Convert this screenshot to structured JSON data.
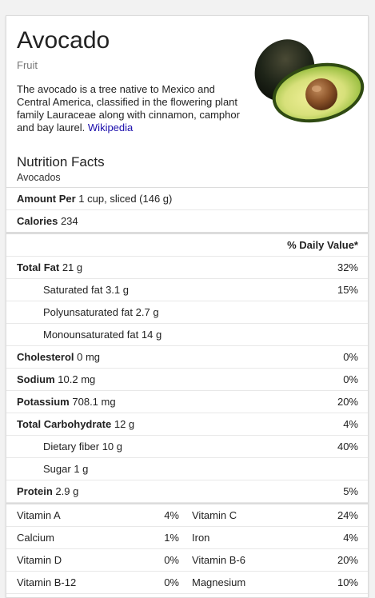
{
  "header": {
    "title": "Avocado",
    "category": "Fruit",
    "description": "The avocado is a tree native to Mexico and Central America, classified in the flowering plant family Lauraceae along with cinnamon, camphor and bay laurel.",
    "source_link": "Wikipedia"
  },
  "nutrition": {
    "title": "Nutrition Facts",
    "subtitle": "Avocados",
    "amount_label": "Amount Per",
    "amount_value": "1 cup, sliced (146 g)",
    "calories_label": "Calories",
    "calories_value": "234",
    "dv_header": "% Daily Value*",
    "rows": [
      {
        "label": "Total Fat",
        "amount": "21 g",
        "dv": "32%"
      },
      {
        "label": "Saturated fat",
        "amount": "3.1 g",
        "dv": "15%"
      },
      {
        "label": "Polyunsaturated fat",
        "amount": "2.7 g",
        "dv": ""
      },
      {
        "label": "Monounsaturated fat",
        "amount": "14 g",
        "dv": ""
      },
      {
        "label": "Cholesterol",
        "amount": "0 mg",
        "dv": "0%"
      },
      {
        "label": "Sodium",
        "amount": "10.2 mg",
        "dv": "0%"
      },
      {
        "label": "Potassium",
        "amount": "708.1 mg",
        "dv": "20%"
      },
      {
        "label": "Total Carbohydrate",
        "amount": "12 g",
        "dv": "4%"
      },
      {
        "label": "Dietary fiber",
        "amount": "10 g",
        "dv": "40%"
      },
      {
        "label": "Sugar",
        "amount": "1 g",
        "dv": ""
      },
      {
        "label": "Protein",
        "amount": "2.9 g",
        "dv": "5%"
      }
    ],
    "vitamins": [
      {
        "name1": "Vitamin A",
        "pct1": "4%",
        "name2": "Vitamin C",
        "pct2": "24%"
      },
      {
        "name1": "Calcium",
        "pct1": "1%",
        "name2": "Iron",
        "pct2": "4%"
      },
      {
        "name1": "Vitamin D",
        "pct1": "0%",
        "name2": "Vitamin B-6",
        "pct2": "20%"
      },
      {
        "name1": "Vitamin B-12",
        "pct1": "0%",
        "name2": "Magnesium",
        "pct2": "10%"
      }
    ]
  },
  "colors": {
    "link": "#1a0dab",
    "muted": "#777777",
    "divider": "#dcdcdc"
  }
}
